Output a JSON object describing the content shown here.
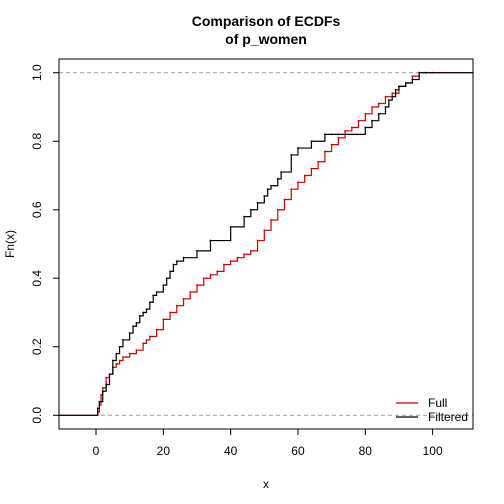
{
  "chart_data": {
    "type": "line",
    "title_lines": [
      "Comparison of ECDFs",
      "of p_women"
    ],
    "xlabel": "x",
    "ylabel": "Fn(x)",
    "xlim": [
      -11,
      112
    ],
    "ylim": [
      -0.04,
      1.04
    ],
    "x_ticks": [
      0,
      20,
      40,
      60,
      80,
      100
    ],
    "x_tick_labels": [
      "0",
      "20",
      "40",
      "60",
      "80",
      "100"
    ],
    "y_ticks": [
      0.0,
      0.2,
      0.4,
      0.6,
      0.8,
      1.0
    ],
    "y_tick_labels": [
      "0.0",
      "0.2",
      "0.4",
      "0.6",
      "0.8",
      "1.0"
    ],
    "reference_lines": [
      0,
      1
    ],
    "legend_position": "bottom-right",
    "series": [
      {
        "name": "Full",
        "color": "#cc0000",
        "x": [
          0.5,
          1,
          1.5,
          2,
          3,
          4,
          5,
          6,
          7,
          8,
          9,
          10,
          12,
          14,
          15,
          16,
          18,
          20,
          22,
          24,
          26,
          28,
          30,
          32,
          34,
          36,
          38,
          40,
          42,
          44,
          46,
          48,
          50,
          52,
          54,
          56,
          58,
          60,
          62,
          64,
          66,
          68,
          70,
          72,
          74,
          76,
          78,
          80,
          82,
          84,
          86,
          88,
          90,
          92,
          94,
          96,
          98,
          100
        ],
        "y": [
          0.01,
          0.03,
          0.06,
          0.08,
          0.11,
          0.12,
          0.14,
          0.15,
          0.16,
          0.17,
          0.17,
          0.18,
          0.19,
          0.21,
          0.22,
          0.23,
          0.25,
          0.28,
          0.3,
          0.32,
          0.34,
          0.36,
          0.38,
          0.4,
          0.41,
          0.42,
          0.44,
          0.45,
          0.46,
          0.47,
          0.48,
          0.51,
          0.54,
          0.57,
          0.6,
          0.63,
          0.66,
          0.68,
          0.7,
          0.72,
          0.74,
          0.77,
          0.79,
          0.81,
          0.83,
          0.84,
          0.86,
          0.88,
          0.9,
          0.91,
          0.93,
          0.94,
          0.96,
          0.97,
          0.99,
          1.0,
          1.0,
          1.0
        ]
      },
      {
        "name": "Filtered",
        "color": "#000000",
        "x": [
          0.5,
          1,
          2,
          3,
          4,
          5,
          6,
          7,
          8,
          10,
          11,
          12,
          13,
          14,
          15,
          16,
          17,
          18,
          20,
          21,
          22,
          23,
          24,
          26,
          30,
          34,
          40,
          44,
          46,
          48,
          50,
          51,
          52,
          54,
          55,
          58,
          60,
          64,
          68,
          70,
          72,
          76,
          80,
          82,
          84,
          86,
          87,
          88,
          89,
          90,
          92,
          94,
          96,
          98
        ],
        "y": [
          0.02,
          0.04,
          0.07,
          0.09,
          0.12,
          0.16,
          0.18,
          0.2,
          0.22,
          0.24,
          0.26,
          0.27,
          0.29,
          0.3,
          0.31,
          0.33,
          0.35,
          0.36,
          0.38,
          0.4,
          0.42,
          0.44,
          0.45,
          0.46,
          0.48,
          0.51,
          0.55,
          0.58,
          0.6,
          0.62,
          0.64,
          0.66,
          0.67,
          0.69,
          0.71,
          0.76,
          0.78,
          0.8,
          0.82,
          0.82,
          0.82,
          0.82,
          0.84,
          0.86,
          0.88,
          0.9,
          0.92,
          0.93,
          0.95,
          0.96,
          0.97,
          0.98,
          1.0,
          1.0
        ]
      }
    ]
  }
}
